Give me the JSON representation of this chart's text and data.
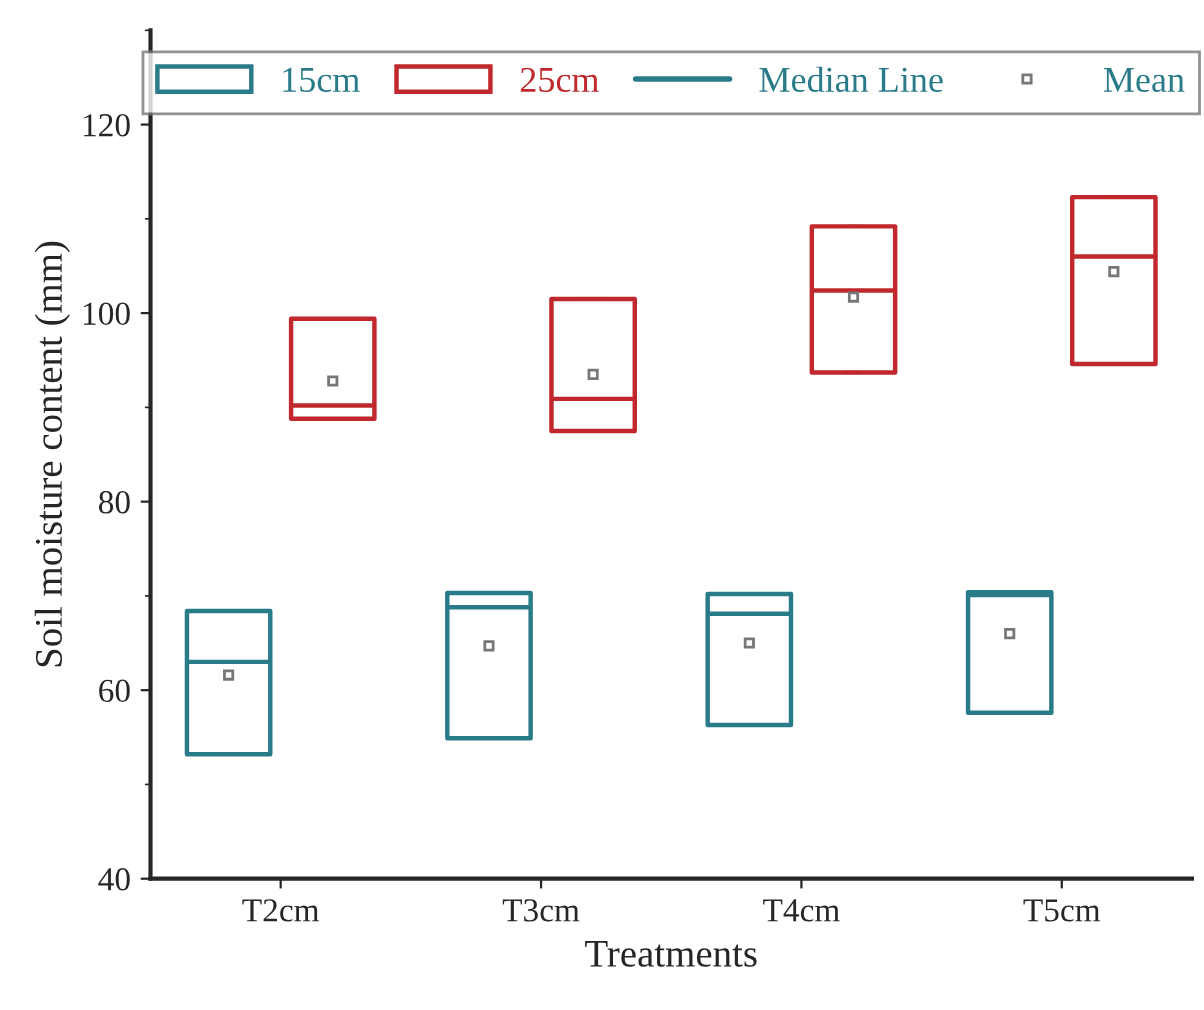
{
  "chart_data": {
    "type": "box",
    "xlabel": "Treatments",
    "ylabel": "Soil moisture content (mm)",
    "categories": [
      "T2cm",
      "T3cm",
      "T4cm",
      "T5cm"
    ],
    "series": [
      {
        "name": "15cm",
        "color": "#2a7b8a",
        "boxes": [
          {
            "low": 53.2,
            "q1": 53.2,
            "median": 63.0,
            "q3": 68.4,
            "high": 68.4,
            "mean": 61.6
          },
          {
            "low": 54.9,
            "q1": 54.9,
            "median": 68.8,
            "q3": 70.3,
            "high": 70.3,
            "mean": 64.7
          },
          {
            "low": 56.3,
            "q1": 56.3,
            "median": 68.1,
            "q3": 70.2,
            "high": 70.2,
            "mean": 65.0
          },
          {
            "low": 57.6,
            "q1": 57.6,
            "median": 70.1,
            "q3": 70.4,
            "high": 70.4,
            "mean": 66.0
          }
        ]
      },
      {
        "name": "25cm",
        "color": "#c0282d",
        "boxes": [
          {
            "low": 88.8,
            "q1": 88.8,
            "median": 90.2,
            "q3": 99.4,
            "high": 99.4,
            "mean": 92.8
          },
          {
            "low": 87.5,
            "q1": 87.5,
            "median": 90.9,
            "q3": 101.5,
            "high": 101.5,
            "mean": 93.5
          },
          {
            "low": 93.7,
            "q1": 93.7,
            "median": 102.4,
            "q3": 109.2,
            "high": 109.2,
            "mean": 101.7
          },
          {
            "low": 94.6,
            "q1": 94.6,
            "median": 106.0,
            "q3": 112.3,
            "high": 112.3,
            "mean": 104.4
          }
        ]
      }
    ],
    "annotations": [
      "Median Line",
      "Mean"
    ],
    "ylim": [
      40,
      130
    ],
    "yticks": [
      40,
      60,
      80,
      100,
      120
    ],
    "grid": false,
    "legend": "top",
    "marker": "square"
  }
}
